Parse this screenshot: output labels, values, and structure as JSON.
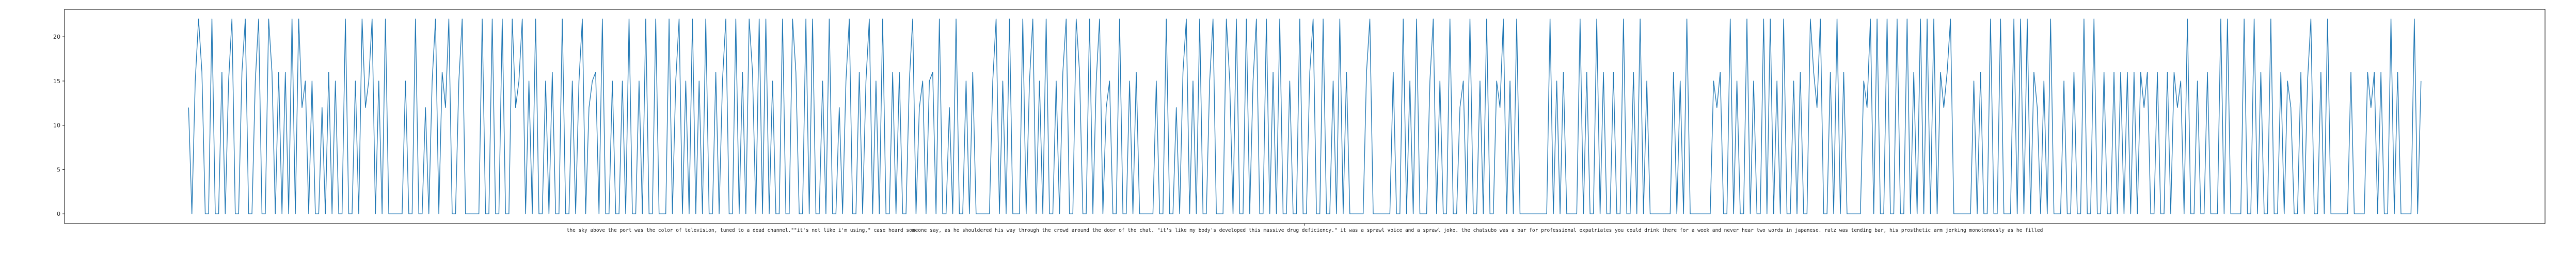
{
  "chart_data": {
    "type": "line",
    "title": "",
    "xlabel": "",
    "ylabel": "",
    "xtick_label": "the sky above the port was the color of television, tuned to a dead channel.\"\"it's not like i'm using,\" case heard someone say, as he shouldered his way through the crowd around the door of the chat. \"it's like my body's developed this massive drug deficiency.\" it was a sprawl voice and a sprawl joke. the chatsubo was a bar for professional expatriates you could drink there for a week and never hear two words in japanese. ratz was tending bar, his prosthetic arm jerking monotonously as he filled",
    "ylim": [
      -1.1,
      23.1
    ],
    "yticks": [
      0,
      5,
      10,
      15,
      20
    ],
    "grid": false,
    "legend": "none",
    "series": [
      {
        "color": "#1f77b4",
        "values": [
          12,
          0,
          15,
          22,
          16,
          0,
          0,
          22,
          0,
          0,
          16,
          0,
          15,
          22,
          0,
          0,
          16,
          22,
          0,
          0,
          15,
          22,
          0,
          0,
          22,
          16,
          0,
          16,
          0,
          16,
          0,
          22,
          0,
          22,
          12,
          15,
          0,
          15,
          0,
          0,
          12,
          0,
          16,
          0,
          15,
          0,
          0,
          22,
          0,
          0,
          15,
          0,
          22,
          12,
          15,
          22,
          0,
          15,
          0,
          22,
          0,
          0,
          0,
          0,
          0,
          15,
          0,
          0,
          22,
          0,
          0,
          12,
          0,
          15,
          22,
          0,
          16,
          12,
          22,
          0,
          0,
          15,
          22,
          0,
          0,
          0,
          0,
          0,
          22,
          0,
          0,
          22,
          0,
          0,
          22,
          0,
          0,
          22,
          12,
          15,
          22,
          0,
          15,
          0,
          22,
          0,
          0,
          15,
          0,
          16,
          0,
          0,
          22,
          0,
          0,
          15,
          0,
          15,
          22,
          0,
          12,
          15,
          16,
          0,
          22,
          0,
          0,
          15,
          0,
          0,
          15,
          0,
          22,
          0,
          0,
          15,
          0,
          22,
          0,
          0,
          22,
          0,
          0,
          0,
          22,
          0,
          15,
          22,
          0,
          15,
          0,
          22,
          0,
          15,
          0,
          22,
          0,
          0,
          16,
          0,
          15,
          22,
          0,
          0,
          22,
          0,
          16,
          0,
          22,
          16,
          0,
          22,
          0,
          22,
          0,
          15,
          0,
          0,
          22,
          0,
          0,
          22,
          16,
          0,
          0,
          22,
          0,
          22,
          0,
          0,
          15,
          0,
          22,
          0,
          0,
          12,
          0,
          15,
          22,
          0,
          0,
          16,
          0,
          15,
          22,
          0,
          15,
          0,
          22,
          0,
          0,
          16,
          0,
          16,
          0,
          0,
          15,
          22,
          0,
          12,
          15,
          0,
          15,
          16,
          0,
          22,
          0,
          0,
          12,
          0,
          22,
          0,
          0,
          15,
          0,
          16,
          0,
          0,
          0,
          0,
          0,
          15,
          22,
          0,
          15,
          0,
          22,
          0,
          0,
          0,
          22,
          0,
          15,
          22,
          0,
          15,
          0,
          22,
          0,
          0,
          15,
          0,
          16,
          22,
          0,
          0,
          22,
          16,
          0,
          0,
          22,
          0,
          15,
          22,
          0,
          12,
          15,
          0,
          0,
          22,
          0,
          0,
          15,
          0,
          16,
          0,
          0,
          0,
          0,
          0,
          15,
          0,
          0,
          22,
          0,
          0,
          12,
          0,
          16,
          22,
          0,
          15,
          0,
          22,
          0,
          0,
          15,
          22,
          0,
          0,
          0,
          22,
          15,
          0,
          22,
          0,
          0,
          22,
          0,
          15,
          22,
          0,
          0,
          22,
          0,
          16,
          0,
          22,
          0,
          0,
          15,
          0,
          0,
          22,
          0,
          0,
          16,
          22,
          0,
          0,
          22,
          0,
          0,
          15,
          0,
          22,
          0,
          16,
          0,
          0,
          0,
          0,
          0,
          16,
          22,
          0,
          0,
          0,
          0,
          0,
          0,
          16,
          0,
          0,
          22,
          0,
          15,
          0,
          22,
          0,
          0,
          0,
          15,
          22,
          0,
          15,
          0,
          0,
          22,
          0,
          0,
          12,
          15,
          0,
          22,
          0,
          0,
          15,
          0,
          22,
          0,
          0,
          15,
          12,
          22,
          0,
          15,
          0,
          22,
          0,
          0,
          0,
          0,
          0,
          0,
          0,
          0,
          0,
          22,
          0,
          15,
          0,
          16,
          0,
          0,
          0,
          0,
          22,
          0,
          16,
          0,
          0,
          22,
          0,
          16,
          0,
          0,
          16,
          0,
          0,
          22,
          0,
          0,
          16,
          0,
          22,
          0,
          15,
          0,
          0,
          0,
          0,
          0,
          0,
          0,
          16,
          0,
          15,
          0,
          22,
          0,
          0,
          0,
          0,
          0,
          0,
          0,
          15,
          12,
          16,
          0,
          0,
          22,
          0,
          15,
          0,
          0,
          22,
          0,
          15,
          0,
          0,
          22,
          0,
          22,
          0,
          15,
          0,
          22,
          0,
          0,
          15,
          0,
          16,
          0,
          0,
          22,
          16,
          12,
          22,
          0,
          0,
          16,
          0,
          22,
          0,
          16,
          0,
          0,
          0,
          0,
          0,
          15,
          12,
          22,
          0,
          22,
          0,
          0,
          22,
          0,
          0,
          22,
          0,
          0,
          22,
          0,
          16,
          0,
          22,
          0,
          22,
          0,
          22,
          0,
          16,
          12,
          16,
          22,
          0,
          0,
          0,
          0,
          0,
          0,
          15,
          0,
          16,
          0,
          0,
          22,
          0,
          0,
          22,
          0,
          0,
          0,
          22,
          0,
          22,
          0,
          22,
          0,
          16,
          12,
          0,
          15,
          0,
          22,
          0,
          0,
          0,
          15,
          0,
          0,
          16,
          0,
          0,
          22,
          0,
          0,
          22,
          0,
          0,
          16,
          0,
          0,
          16,
          0,
          16,
          0,
          16,
          0,
          16,
          0,
          16,
          12,
          16,
          0,
          0,
          16,
          0,
          0,
          16,
          0,
          16,
          12,
          15,
          0,
          22,
          0,
          0,
          15,
          0,
          0,
          16,
          0,
          0,
          0,
          22,
          0,
          22,
          0,
          0,
          0,
          0,
          22,
          0,
          0,
          22,
          0,
          16,
          0,
          0,
          22,
          0,
          0,
          16,
          0,
          15,
          12,
          0,
          0,
          16,
          0,
          15,
          22,
          0,
          0,
          16,
          0,
          22,
          0,
          0,
          0,
          0,
          0,
          0,
          16,
          0,
          0,
          0,
          0,
          16,
          12,
          16,
          0,
          16,
          0,
          0,
          22,
          0,
          16,
          0,
          0,
          0,
          0,
          22,
          0,
          15
        ]
      }
    ]
  }
}
